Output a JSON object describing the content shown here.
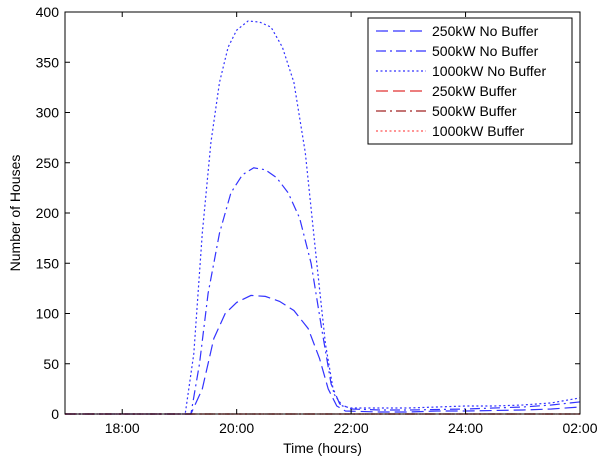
{
  "chart_data": {
    "type": "line",
    "title": "",
    "xlabel": "Time (hours)",
    "ylabel": "Number of Houses",
    "xlim": [
      17,
      26
    ],
    "ylim": [
      0,
      400
    ],
    "x_ticks": [
      {
        "value": 18,
        "label": "18:00"
      },
      {
        "value": 20,
        "label": "20:00"
      },
      {
        "value": 22,
        "label": "22:00"
      },
      {
        "value": 24,
        "label": "24:00"
      },
      {
        "value": 26,
        "label": "02:00"
      }
    ],
    "y_ticks": [
      0,
      50,
      100,
      150,
      200,
      250,
      300,
      350,
      400
    ],
    "grid": false,
    "legend_position": "top-right",
    "series": [
      {
        "name": "250kW No Buffer",
        "color": "#3333ff",
        "dash": "dashed",
        "points": [
          [
            17,
            0
          ],
          [
            19.2,
            0
          ],
          [
            19.4,
            25
          ],
          [
            19.6,
            75
          ],
          [
            19.8,
            100
          ],
          [
            20.0,
            111
          ],
          [
            20.25,
            118
          ],
          [
            20.5,
            117
          ],
          [
            20.75,
            112
          ],
          [
            21.0,
            103
          ],
          [
            21.25,
            85
          ],
          [
            21.45,
            55
          ],
          [
            21.6,
            25
          ],
          [
            21.75,
            8
          ],
          [
            21.9,
            3
          ],
          [
            22.5,
            2
          ],
          [
            23.0,
            2
          ],
          [
            23.5,
            3
          ],
          [
            24.0,
            3
          ],
          [
            25.0,
            4
          ],
          [
            25.5,
            5
          ],
          [
            26.0,
            7
          ]
        ]
      },
      {
        "name": "500kW No Buffer",
        "color": "#3333ff",
        "dash": "dashdot",
        "points": [
          [
            17,
            0
          ],
          [
            19.2,
            0
          ],
          [
            19.35,
            50
          ],
          [
            19.5,
            120
          ],
          [
            19.7,
            180
          ],
          [
            19.9,
            220
          ],
          [
            20.1,
            238
          ],
          [
            20.3,
            245
          ],
          [
            20.5,
            243
          ],
          [
            20.7,
            235
          ],
          [
            20.9,
            220
          ],
          [
            21.1,
            195
          ],
          [
            21.3,
            150
          ],
          [
            21.5,
            80
          ],
          [
            21.65,
            30
          ],
          [
            21.8,
            10
          ],
          [
            22.0,
            5
          ],
          [
            22.5,
            4
          ],
          [
            23.0,
            4
          ],
          [
            24.0,
            5
          ],
          [
            25.0,
            7
          ],
          [
            25.5,
            9
          ],
          [
            26.0,
            12
          ]
        ]
      },
      {
        "name": "1000kW No Buffer",
        "color": "#3333ff",
        "dash": "dotted",
        "points": [
          [
            17,
            0
          ],
          [
            19.1,
            0
          ],
          [
            19.25,
            60
          ],
          [
            19.4,
            180
          ],
          [
            19.55,
            270
          ],
          [
            19.7,
            330
          ],
          [
            19.85,
            365
          ],
          [
            20.0,
            382
          ],
          [
            20.2,
            391
          ],
          [
            20.4,
            390
          ],
          [
            20.6,
            385
          ],
          [
            20.8,
            365
          ],
          [
            21.0,
            330
          ],
          [
            21.2,
            260
          ],
          [
            21.4,
            150
          ],
          [
            21.55,
            70
          ],
          [
            21.7,
            20
          ],
          [
            21.85,
            8
          ],
          [
            22.0,
            6
          ],
          [
            22.5,
            6
          ],
          [
            23.0,
            6
          ],
          [
            24.0,
            8
          ],
          [
            24.5,
            8
          ],
          [
            25.0,
            9
          ],
          [
            25.5,
            11
          ],
          [
            26.0,
            16
          ]
        ]
      },
      {
        "name": "250kW Buffer",
        "color": "#e03030",
        "dash": "dashed",
        "points": [
          [
            17,
            0
          ],
          [
            20.0,
            0
          ],
          [
            22.0,
            0
          ],
          [
            24.0,
            0
          ],
          [
            26.0,
            0
          ]
        ]
      },
      {
        "name": "500kW Buffer",
        "color": "#a02020",
        "dash": "dashdot",
        "points": [
          [
            17,
            0
          ],
          [
            20.0,
            0
          ],
          [
            22.0,
            0
          ],
          [
            24.0,
            0
          ],
          [
            26.0,
            0
          ]
        ]
      },
      {
        "name": "1000kW Buffer",
        "color": "#ff5555",
        "dash": "dotted",
        "points": [
          [
            17,
            0
          ],
          [
            20.0,
            0
          ],
          [
            22.0,
            0
          ],
          [
            24.0,
            0
          ],
          [
            26.0,
            0
          ]
        ]
      }
    ]
  }
}
